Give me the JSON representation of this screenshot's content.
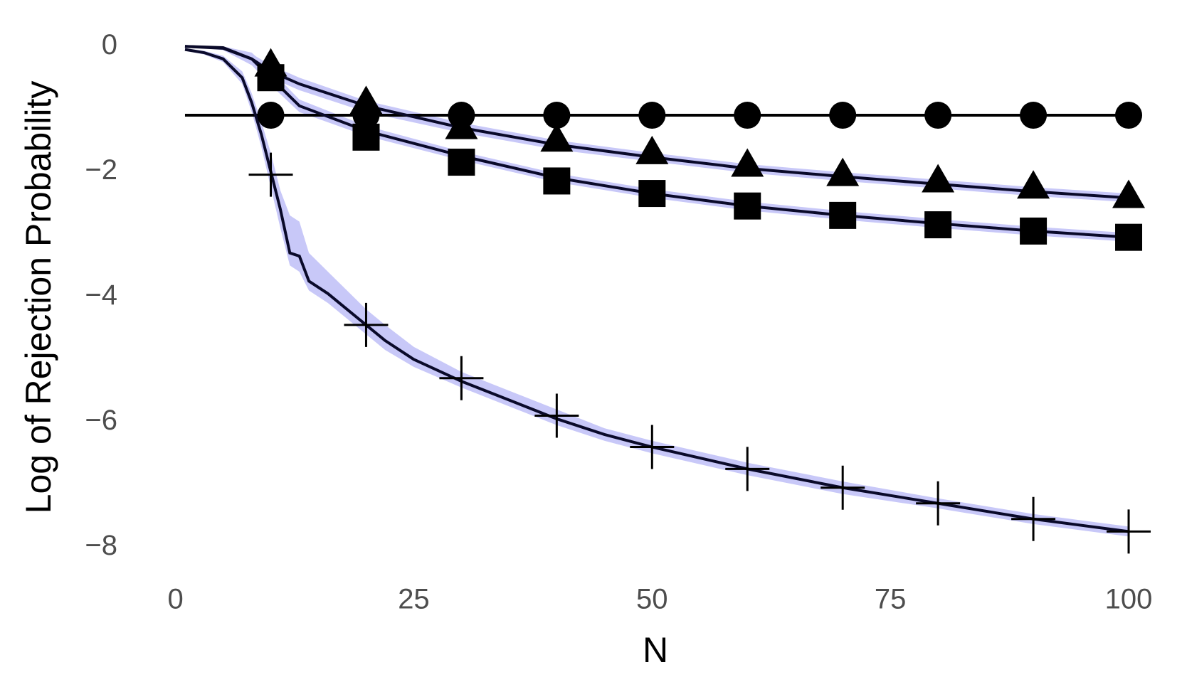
{
  "chart_data": {
    "type": "line",
    "xlabel": "N",
    "ylabel": "Log of Rejection Probability",
    "xlim": [
      -4,
      105
    ],
    "ylim": [
      -8.2,
      0.4
    ],
    "xticks": [
      0,
      25,
      50,
      75,
      100
    ],
    "yticks": [
      0,
      {
        "value": -2,
        "label": "−2"
      },
      {
        "value": -4,
        "label": "−4"
      },
      {
        "value": -6,
        "label": "−6"
      },
      {
        "value": -8,
        "label": "−8"
      }
    ],
    "grid": true,
    "minor_grid": true,
    "band_color": "#c8c8f8",
    "series": [
      {
        "color": "#000000",
        "marker": "circle",
        "x": [
          1,
          100
        ],
        "values": [
          -1.1,
          -1.1
        ],
        "marker_x": [
          10,
          20,
          30,
          40,
          50,
          60,
          70,
          80,
          90,
          100
        ],
        "marker_values": [
          -1.1,
          -1.1,
          -1.1,
          -1.1,
          -1.1,
          -1.1,
          -1.1,
          -1.1,
          -1.1,
          -1.1
        ]
      },
      {
        "color": "#0a0a2a",
        "marker": "triangle",
        "x": [
          1,
          5,
          8,
          10,
          13,
          20,
          30,
          40,
          50,
          60,
          70,
          80,
          90,
          100
        ],
        "values": [
          0,
          -0.02,
          -0.2,
          -0.4,
          -0.6,
          -0.95,
          -1.3,
          -1.57,
          -1.77,
          -1.95,
          -2.08,
          -2.2,
          -2.32,
          -2.42
        ],
        "lower": [
          0,
          -0.05,
          -0.3,
          -0.5,
          -0.7,
          -1.05,
          -1.38,
          -1.65,
          -1.84,
          -2.02,
          -2.15,
          -2.27,
          -2.39,
          -2.49
        ],
        "upper": [
          0,
          0,
          -0.12,
          -0.3,
          -0.5,
          -0.87,
          -1.22,
          -1.5,
          -1.7,
          -1.88,
          -2.01,
          -2.13,
          -2.25,
          -2.35
        ],
        "marker_x": [
          10,
          20,
          30,
          40,
          50,
          60,
          70,
          80,
          90,
          100
        ],
        "marker_values": [
          -0.3,
          -0.9,
          -1.3,
          -1.5,
          -1.7,
          -1.9,
          -2.05,
          -2.15,
          -2.25,
          -2.4
        ]
      },
      {
        "color": "#0a0a2a",
        "marker": "square",
        "x": [
          1,
          5,
          8,
          10,
          13,
          20,
          30,
          40,
          50,
          60,
          70,
          80,
          90,
          100
        ],
        "values": [
          0,
          -0.03,
          -0.2,
          -0.5,
          -0.95,
          -1.35,
          -1.75,
          -2.1,
          -2.35,
          -2.55,
          -2.7,
          -2.83,
          -2.95,
          -3.05
        ],
        "lower": [
          0,
          -0.06,
          -0.3,
          -0.62,
          -1.05,
          -1.43,
          -1.82,
          -2.17,
          -2.42,
          -2.62,
          -2.77,
          -2.9,
          -3.02,
          -3.12
        ],
        "upper": [
          0,
          0,
          -0.1,
          -0.38,
          -0.85,
          -1.27,
          -1.68,
          -2.03,
          -2.28,
          -2.48,
          -2.63,
          -2.76,
          -2.88,
          -2.98
        ],
        "marker_x": [
          10,
          20,
          30,
          40,
          50,
          60,
          70,
          80,
          90,
          100
        ],
        "marker_values": [
          -0.5,
          -1.45,
          -1.85,
          -2.15,
          -2.35,
          -2.55,
          -2.7,
          -2.85,
          -2.95,
          -3.05
        ]
      },
      {
        "color": "#0a0a2a",
        "marker": "cross",
        "x": [
          1,
          3,
          5,
          7,
          8,
          9,
          10,
          11,
          12,
          13,
          14,
          16,
          18,
          20,
          22,
          25,
          30,
          35,
          40,
          45,
          50,
          60,
          70,
          80,
          90,
          100
        ],
        "values": [
          -0.05,
          -0.1,
          -0.2,
          -0.5,
          -0.9,
          -1.4,
          -2.0,
          -2.6,
          -3.3,
          -3.35,
          -3.75,
          -3.95,
          -4.2,
          -4.45,
          -4.7,
          -5.0,
          -5.35,
          -5.65,
          -5.95,
          -6.2,
          -6.4,
          -6.75,
          -7.05,
          -7.3,
          -7.55,
          -7.75
        ],
        "lower": [
          -0.07,
          -0.13,
          -0.25,
          -0.6,
          -1.05,
          -1.6,
          -2.25,
          -2.9,
          -3.5,
          -3.6,
          -3.9,
          -4.1,
          -4.35,
          -4.6,
          -4.85,
          -5.12,
          -5.45,
          -5.75,
          -6.05,
          -6.3,
          -6.5,
          -6.85,
          -7.15,
          -7.38,
          -7.63,
          -7.83
        ],
        "upper": [
          -0.03,
          -0.07,
          -0.15,
          -0.4,
          -0.75,
          -1.2,
          -1.7,
          -2.3,
          -2.7,
          -2.8,
          -3.3,
          -3.6,
          -3.9,
          -4.2,
          -4.45,
          -4.8,
          -5.2,
          -5.5,
          -5.8,
          -6.1,
          -6.3,
          -6.65,
          -6.95,
          -7.22,
          -7.47,
          -7.67
        ],
        "marker_x": [
          10,
          20,
          30,
          40,
          50,
          60,
          70,
          80,
          90,
          100
        ],
        "marker_values": [
          -2.05,
          -4.45,
          -5.3,
          -5.9,
          -6.4,
          -6.75,
          -7.05,
          -7.3,
          -7.55,
          -7.75
        ]
      }
    ]
  }
}
